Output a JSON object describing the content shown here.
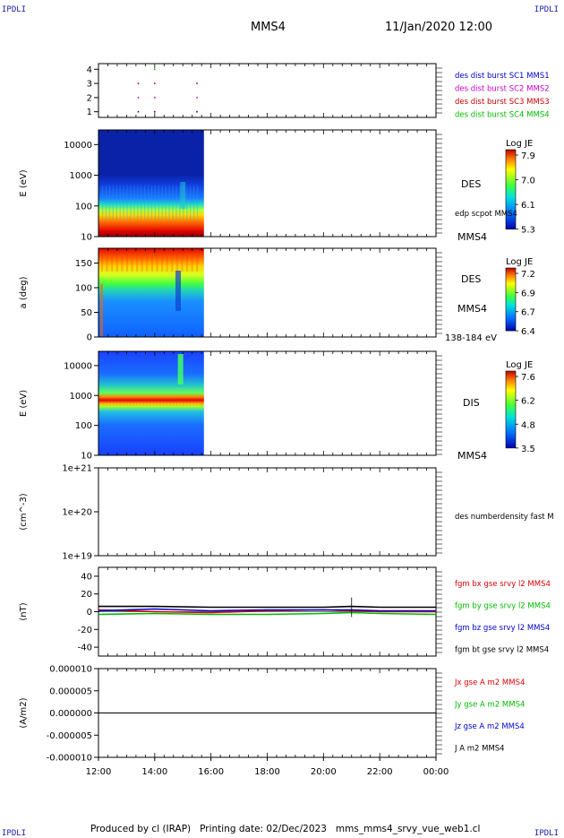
{
  "header": {
    "left_tag": "IPDLI",
    "right_tag": "IPDLI",
    "spacecraft": "MMS4",
    "datetime": "11/Jan/2020 12:00"
  },
  "footer": {
    "left_tag": "IPDLI",
    "right_tag": "IPDLI",
    "text": "Produced by cl (IRAP)   Printing date: 02/Dec/2023   mms_mms4_srvy_vue_web1.cl"
  },
  "colors": {
    "mms1": "#0000cc",
    "mms2": "#cc00cc",
    "mms3": "#cc0000",
    "mms4": "#00bb00",
    "bx": "#dd0000",
    "by": "#00bb00",
    "bz": "#0000cc",
    "bt": "#000000"
  },
  "chart_data": [
    {
      "type": "scatter",
      "panel": "burst availability",
      "yticks": [
        "1",
        "2",
        "3",
        "4"
      ],
      "ylim": [
        0.6,
        4.4
      ],
      "xlim": [
        "12:00",
        "00:00"
      ],
      "legend": [
        {
          "label": "des dist burst SC1 MMS1",
          "color": "#0000cc"
        },
        {
          "label": "des dist burst SC2 MMS2",
          "color": "#cc00cc"
        },
        {
          "label": "des dist burst SC3 MMS3",
          "color": "#cc0000"
        },
        {
          "label": "des dist burst SC4 MMS4",
          "color": "#00bb00"
        }
      ],
      "series": [
        {
          "name": "des dist burst SC1 MMS1",
          "y": 1,
          "x": [
            "13:25",
            "14:00",
            "15:30"
          ]
        },
        {
          "name": "des dist burst SC2 MMS2",
          "y": 2,
          "x": [
            "13:25",
            "14:00",
            "15:30"
          ]
        },
        {
          "name": "des dist burst SC3 MMS3",
          "y": 3,
          "x": [
            "13:25",
            "14:00",
            "15:30"
          ]
        },
        {
          "name": "des dist burst SC4 MMS4",
          "y": 4,
          "x": [
            "14:00"
          ]
        }
      ]
    },
    {
      "type": "heatmap",
      "panel": "DES energy spectrogram",
      "ylabel": "E (eV)",
      "yscale": "log",
      "yticks": [
        "10",
        "100",
        "1000",
        "10000"
      ],
      "ylim": [
        10,
        30000
      ],
      "data_span": [
        "12:00",
        "15:45"
      ],
      "right_labels": [
        "DES",
        "edp scpot MMS4",
        "MMS4"
      ],
      "colorbar": {
        "title": "Log JE",
        "ticks": [
          "7.9",
          "7.0",
          "6.1",
          "5.3"
        ],
        "range": [
          5.3,
          7.9
        ]
      }
    },
    {
      "type": "heatmap",
      "panel": "DES pitch angle",
      "ylabel": "a (deg)",
      "yticks": [
        "0",
        "50",
        "100",
        "150"
      ],
      "ylim": [
        0,
        180
      ],
      "data_span": [
        "12:00",
        "15:45"
      ],
      "right_labels": [
        "DES",
        "MMS4",
        "138-184 eV"
      ],
      "colorbar": {
        "title": "Log JE",
        "ticks": [
          "7.2",
          "6.9",
          "6.7",
          "6.4"
        ],
        "range": [
          6.4,
          7.2
        ]
      }
    },
    {
      "type": "heatmap",
      "panel": "DIS energy spectrogram",
      "ylabel": "E (eV)",
      "yscale": "log",
      "yticks": [
        "10",
        "100",
        "1000",
        "10000"
      ],
      "ylim": [
        10,
        30000
      ],
      "data_span": [
        "12:00",
        "15:45"
      ],
      "right_labels": [
        "DIS",
        "MMS4"
      ],
      "colorbar": {
        "title": "Log JE",
        "ticks": [
          "7.6",
          "6.2",
          "4.8",
          "3.5"
        ],
        "range": [
          3.5,
          7.6
        ]
      }
    },
    {
      "type": "line",
      "panel": "number density",
      "ylabel": "(cm^-3)",
      "yscale": "log",
      "yticks": [
        "1e+19",
        "1e+20",
        "1e+21"
      ],
      "ylim": [
        1e+19,
        1e+21
      ],
      "legend": [
        {
          "label": "des numberdensity fast M",
          "color": "#000000"
        }
      ],
      "series": []
    },
    {
      "type": "line",
      "panel": "magnetic field",
      "ylabel": "(nT)",
      "yticks": [
        "-40",
        "-20",
        "0",
        "20",
        "40"
      ],
      "ylim": [
        -50,
        50
      ],
      "xlim": [
        "12:00",
        "00:00"
      ],
      "legend": [
        {
          "label": "fgm bx gse srvy l2 MMS4",
          "color": "#dd0000"
        },
        {
          "label": "fgm by gse srvy l2 MMS4",
          "color": "#00bb00"
        },
        {
          "label": "fgm bz gse srvy l2 MMS4",
          "color": "#0000cc"
        },
        {
          "label": "fgm bt gse srvy l2 MMS4",
          "color": "#000000"
        }
      ],
      "series": [
        {
          "name": "fgm bt gse srvy l2 MMS4",
          "x": [
            "12:00",
            "14:00",
            "16:00",
            "18:00",
            "20:00",
            "21:00",
            "22:00",
            "00:00"
          ],
          "values": [
            6,
            6,
            5,
            5,
            5,
            6,
            5,
            5
          ]
        },
        {
          "name": "fgm bx gse srvy l2 MMS4",
          "x": [
            "12:00",
            "14:00",
            "16:00",
            "18:00",
            "20:00",
            "21:00",
            "22:00",
            "00:00"
          ],
          "values": [
            2,
            0,
            -1,
            1,
            2,
            1,
            0,
            0
          ]
        },
        {
          "name": "fgm by gse srvy l2 MMS4",
          "x": [
            "12:00",
            "14:00",
            "16:00",
            "18:00",
            "20:00",
            "21:00",
            "22:00",
            "00:00"
          ],
          "values": [
            -3,
            -2,
            -3,
            -3,
            -2,
            -1,
            -2,
            -3
          ]
        },
        {
          "name": "fgm bz gse srvy l2 MMS4",
          "x": [
            "12:00",
            "14:00",
            "16:00",
            "18:00",
            "20:00",
            "21:00",
            "22:00",
            "00:00"
          ],
          "values": [
            1,
            3,
            1,
            2,
            2,
            2,
            1,
            1
          ]
        }
      ]
    },
    {
      "type": "line",
      "panel": "current density",
      "ylabel": "(A/m2)",
      "yticks": [
        "-0.000010",
        "-0.000005",
        "0.000000",
        "0.000005",
        "0.000010"
      ],
      "ylim": [
        -1e-05,
        1e-05
      ],
      "xlim": [
        "12:00",
        "00:00"
      ],
      "xticks": [
        "12:00",
        "14:00",
        "16:00",
        "18:00",
        "20:00",
        "22:00",
        "00:00"
      ],
      "legend": [
        {
          "label": "Jx gse A m2 MMS4",
          "color": "#dd0000"
        },
        {
          "label": "Jy gse A m2 MMS4",
          "color": "#00bb00"
        },
        {
          "label": "Jz gse A m2 MMS4",
          "color": "#0000cc"
        },
        {
          "label": "J A m2 MMS4",
          "color": "#000000"
        }
      ],
      "series": [
        {
          "name": "J A m2 MMS4",
          "x": [
            "12:00",
            "00:00"
          ],
          "values": [
            0,
            0
          ]
        }
      ]
    }
  ]
}
